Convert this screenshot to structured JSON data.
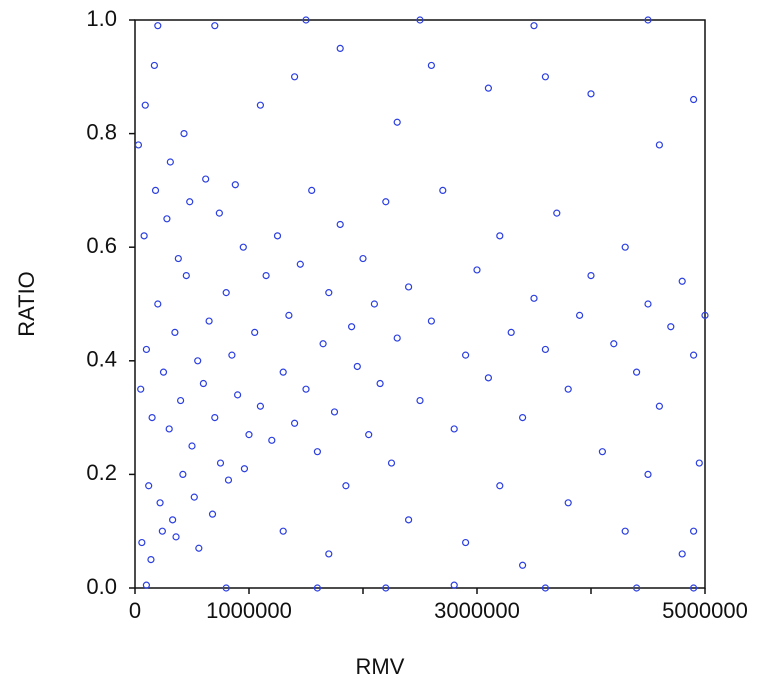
{
  "chart_data": {
    "type": "scatter",
    "x_label": "RMV",
    "y_label": "RATIO",
    "xlim": [
      0,
      5000000
    ],
    "ylim": [
      0,
      1
    ],
    "xticks": [
      0,
      1000000,
      3000000,
      5000000
    ],
    "minor_xticks": [
      2000000,
      4000000
    ],
    "yticks": [
      {
        "value": 0,
        "label": "0.0"
      },
      0.2,
      0.4,
      0.6,
      0.8,
      {
        "value": 1,
        "label": "1.0"
      }
    ],
    "grid": false,
    "series": [
      {
        "color": "#2b3fe0",
        "x": [
          50000,
          100000,
          150000,
          200000,
          250000,
          300000,
          350000,
          400000,
          450000,
          500000,
          550000,
          600000,
          650000,
          700000,
          750000,
          800000,
          850000,
          900000,
          950000,
          1000000,
          80000,
          120000,
          180000,
          220000,
          280000,
          330000,
          380000,
          420000,
          480000,
          520000,
          30000,
          60000,
          90000,
          140000,
          170000,
          240000,
          310000,
          360000,
          430000,
          560000,
          620000,
          680000,
          740000,
          820000,
          880000,
          960000,
          1050000,
          1100000,
          1150000,
          1200000,
          1250000,
          1300000,
          1350000,
          1400000,
          1450000,
          1500000,
          1550000,
          1600000,
          1650000,
          1700000,
          1750000,
          1800000,
          1850000,
          1900000,
          1950000,
          2000000,
          2050000,
          2100000,
          2150000,
          2200000,
          2250000,
          2300000,
          2400000,
          2500000,
          2600000,
          2700000,
          2800000,
          2900000,
          3000000,
          3100000,
          3200000,
          3300000,
          3400000,
          3500000,
          3600000,
          3700000,
          3800000,
          3900000,
          4000000,
          4100000,
          4200000,
          4300000,
          4400000,
          4500000,
          4600000,
          4700000,
          4800000,
          4900000,
          5000000,
          1100000,
          1400000,
          1800000,
          2300000,
          2600000,
          3100000,
          3600000,
          4000000,
          4600000,
          4900000,
          1300000,
          1700000,
          2400000,
          2900000,
          3400000,
          3800000,
          4300000,
          4800000,
          3200000,
          4500000,
          200000,
          700000,
          1500000,
          2500000,
          3500000,
          4500000,
          100000,
          800000,
          1600000,
          2200000,
          2800000,
          3600000,
          4400000,
          4900000,
          4950000,
          4900000
        ],
        "values": [
          0.35,
          0.42,
          0.3,
          0.5,
          0.38,
          0.28,
          0.45,
          0.33,
          0.55,
          0.25,
          0.4,
          0.36,
          0.47,
          0.3,
          0.22,
          0.52,
          0.41,
          0.34,
          0.6,
          0.27,
          0.62,
          0.18,
          0.7,
          0.15,
          0.65,
          0.12,
          0.58,
          0.2,
          0.68,
          0.16,
          0.78,
          0.08,
          0.85,
          0.05,
          0.92,
          0.1,
          0.75,
          0.09,
          0.8,
          0.07,
          0.72,
          0.13,
          0.66,
          0.19,
          0.71,
          0.21,
          0.45,
          0.32,
          0.55,
          0.26,
          0.62,
          0.38,
          0.48,
          0.29,
          0.57,
          0.35,
          0.7,
          0.24,
          0.43,
          0.52,
          0.31,
          0.64,
          0.18,
          0.46,
          0.39,
          0.58,
          0.27,
          0.5,
          0.36,
          0.68,
          0.22,
          0.44,
          0.53,
          0.33,
          0.47,
          0.7,
          0.28,
          0.41,
          0.56,
          0.37,
          0.62,
          0.45,
          0.3,
          0.51,
          0.42,
          0.66,
          0.35,
          0.48,
          0.55,
          0.24,
          0.43,
          0.6,
          0.38,
          0.5,
          0.32,
          0.46,
          0.54,
          0.41,
          0.48,
          0.85,
          0.9,
          0.95,
          0.82,
          0.92,
          0.88,
          0.9,
          0.87,
          0.78,
          0.86,
          0.1,
          0.06,
          0.12,
          0.08,
          0.04,
          0.15,
          0.1,
          0.06,
          0.18,
          0.2,
          0.99,
          0.99,
          1,
          1,
          0.99,
          1,
          0.005,
          0,
          0,
          0,
          0.005,
          0,
          0,
          0,
          0.22,
          0.1
        ]
      }
    ]
  }
}
